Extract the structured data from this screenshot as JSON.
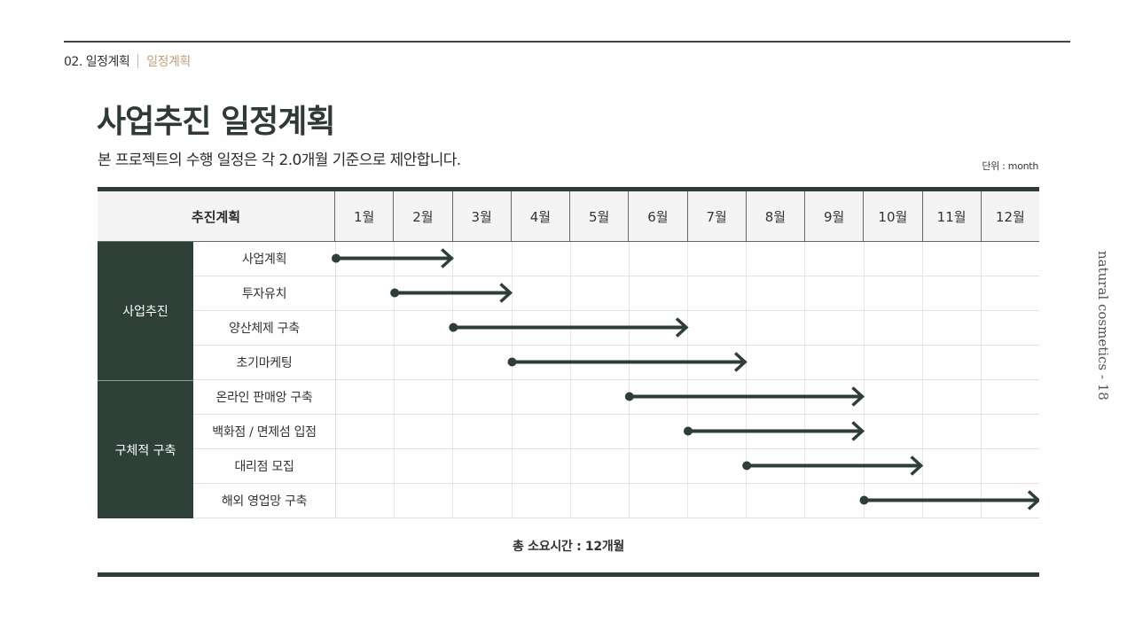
{
  "header": {
    "section": "02. 일정계획",
    "current": "일정계획"
  },
  "title": "사업추진 일정계획",
  "subtitle": "본 프로젝트의 수행 일정은 각 2.0개월 기준으로 제안합니다.",
  "unit": "단위 : month",
  "side_caption": "natural cosmetics - 18",
  "colors": {
    "primary": "#2e4038",
    "accent": "#c0a07a",
    "arrow": "#2e3d37"
  },
  "table": {
    "plan_header": "추진계획",
    "months": [
      "1월",
      "2월",
      "3월",
      "4월",
      "5월",
      "6월",
      "7월",
      "8월",
      "9월",
      "10월",
      "11월",
      "12월"
    ],
    "groups": [
      {
        "label": "사업추진",
        "tasks": [
          {
            "label": "사업계획",
            "start": 1,
            "end": 2
          },
          {
            "label": "투자유치",
            "start": 2,
            "end": 3
          },
          {
            "label": "양산체제 구축",
            "start": 3,
            "end": 6
          },
          {
            "label": "초기마케팅",
            "start": 4,
            "end": 7
          }
        ]
      },
      {
        "label": "구체적 구축",
        "tasks": [
          {
            "label": "온라인 판매앙 구축",
            "start": 6,
            "end": 9
          },
          {
            "label": "백화점 / 면제섬 입점",
            "start": 7,
            "end": 9
          },
          {
            "label": "대리점 모집",
            "start": 8,
            "end": 10
          },
          {
            "label": "해외 영업망 구축",
            "start": 10,
            "end": 12
          }
        ]
      }
    ],
    "total": "총 소요시간 : 12개월"
  }
}
